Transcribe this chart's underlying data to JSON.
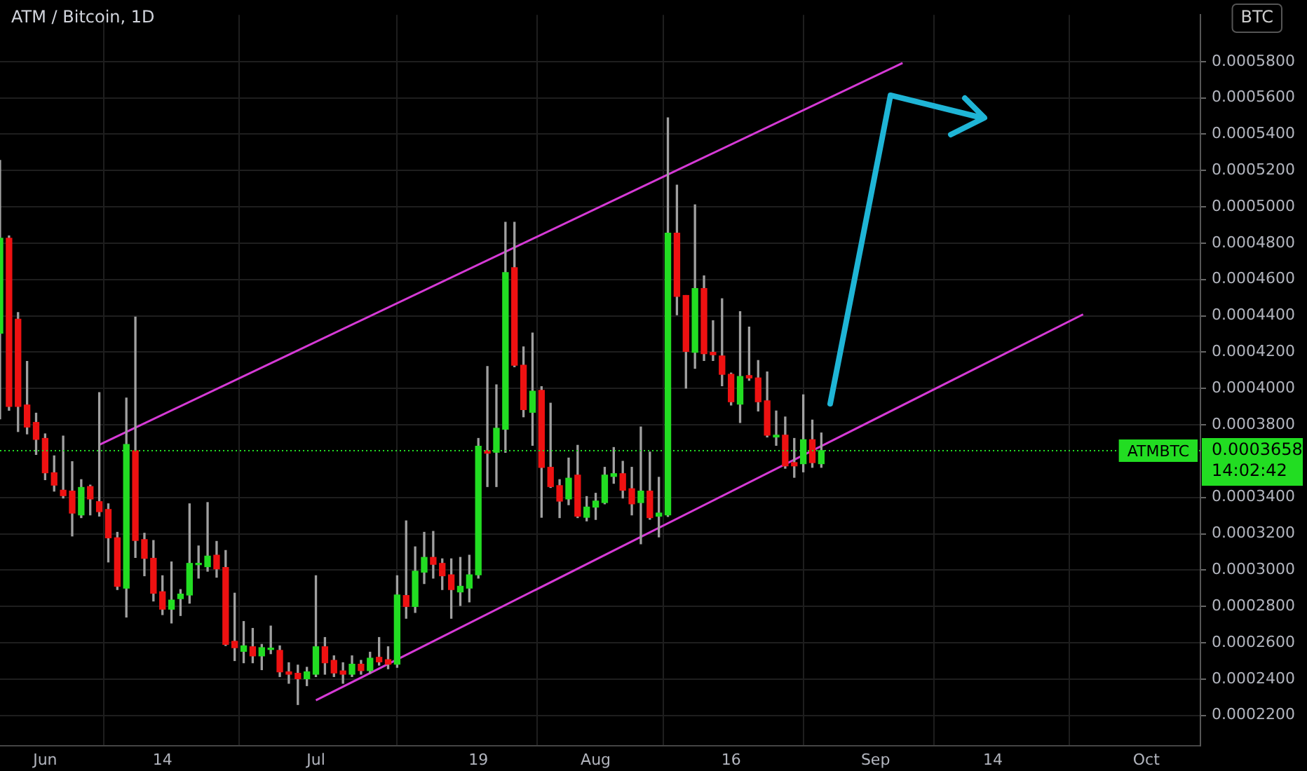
{
  "chart_data": {
    "type": "candlestick",
    "title": "ATM / Bitcoin, 1D",
    "x": [
      "--05-27",
      "--05-28",
      "--05-29",
      "--05-30",
      "--05-31",
      "--06-01",
      "--06-02",
      "--06-03",
      "--06-04",
      "--06-05",
      "--06-06",
      "--06-07",
      "--06-08",
      "--06-09",
      "--06-10",
      "--06-11",
      "--06-12",
      "--06-13",
      "--06-14",
      "--06-15",
      "--06-16",
      "--06-17",
      "--06-18",
      "--06-19",
      "--06-20",
      "--06-21",
      "--06-22",
      "--06-23",
      "--06-24",
      "--06-25",
      "--06-26",
      "--06-27",
      "--06-28",
      "--06-29",
      "--06-30",
      "--07-01",
      "--07-02",
      "--07-03",
      "--07-04",
      "--07-05",
      "--07-06",
      "--07-07",
      "--07-08",
      "--07-09",
      "--07-10",
      "--07-11",
      "--07-12",
      "--07-13",
      "--07-14",
      "--07-15",
      "--07-16",
      "--07-17",
      "--07-18",
      "--07-19",
      "--07-20",
      "--07-21",
      "--07-22",
      "--07-23",
      "--07-24",
      "--07-25",
      "--07-26",
      "--07-27",
      "--07-28",
      "--07-29",
      "--07-30",
      "--07-31",
      "--08-01",
      "--08-02",
      "--08-03",
      "--08-04",
      "--08-05",
      "--08-06",
      "--08-07",
      "--08-08",
      "--08-09",
      "--08-10",
      "--08-11",
      "--08-12",
      "--08-13",
      "--08-14",
      "--08-15",
      "--08-16",
      "--08-17",
      "--08-18",
      "--08-19",
      "--08-20",
      "--08-21",
      "--08-22",
      "--08-23",
      "--08-24",
      "--08-25",
      "--08-26"
    ],
    "ohlc": [
      [
        0.0004305,
        0.0005255,
        0.0003833,
        0.0004827
      ],
      [
        0.0004827,
        0.000484,
        0.000388,
        0.0003901
      ],
      [
        0.0004381,
        0.0004418,
        0.0003763,
        0.0003901
      ],
      [
        0.0003909,
        0.0004149,
        0.000375,
        0.0003788
      ],
      [
        0.0003813,
        0.0003864,
        0.0003637,
        0.000372
      ],
      [
        0.0003725,
        0.000375,
        0.0003498,
        0.0003536
      ],
      [
        0.0003536,
        0.0003629,
        0.0003435,
        0.0003468
      ],
      [
        0.000344,
        0.0003738,
        0.0003397,
        0.000341
      ],
      [
        0.0003435,
        0.0003597,
        0.0003188,
        0.0003314
      ],
      [
        0.0003304,
        0.0003498,
        0.0003289,
        0.0003455
      ],
      [
        0.000346,
        0.0003468,
        0.0003304,
        0.0003392
      ],
      [
        0.0003377,
        0.0003977,
        0.0003297,
        0.0003322
      ],
      [
        0.0003334,
        0.0003365,
        0.0003045,
        0.0003178
      ],
      [
        0.0003178,
        0.0003208,
        0.0002893,
        0.0002911
      ],
      [
        0.0002901,
        0.0003947,
        0.0002742,
        0.0003692
      ],
      [
        0.0003657,
        0.0004393,
        0.000307,
        0.0003163
      ],
      [
        0.0003168,
        0.0003203,
        0.0002969,
        0.0003065
      ],
      [
        0.0003065,
        0.0003163,
        0.000283,
        0.0002873
      ],
      [
        0.0002881,
        0.0002969,
        0.0002755,
        0.0002785
      ],
      [
        0.0002785,
        0.0003045,
        0.0002709,
        0.0002835
      ],
      [
        0.0002843,
        0.0002893,
        0.000275,
        0.0002868
      ],
      [
        0.0002863,
        0.0003365,
        0.0002818,
        0.0003037
      ],
      [
        0.000303,
        0.0003133,
        0.0002956,
        0.0003035
      ],
      [
        0.0003019,
        0.0003372,
        0.0002994,
        0.0003077
      ],
      [
        0.0003082,
        0.0003158,
        0.0002961,
        0.0003007
      ],
      [
        0.0003014,
        0.0003108,
        0.0002585,
        0.0002591
      ],
      [
        0.0002608,
        0.0002873,
        0.0002502,
        0.0002573
      ],
      [
        0.0002553,
        0.0002717,
        0.000249,
        0.0002583
      ],
      [
        0.0002578,
        0.0002679,
        0.000249,
        0.0002528
      ],
      [
        0.0002528,
        0.0002591,
        0.0002452,
        0.0002573
      ],
      [
        0.0002563,
        0.0002692,
        0.000254,
        0.0002567
      ],
      [
        0.0002558,
        0.0002583,
        0.0002414,
        0.000244
      ],
      [
        0.000244,
        0.000249,
        0.0002377,
        0.0002427
      ],
      [
        0.0002432,
        0.0002477,
        0.000226,
        0.0002402
      ],
      [
        0.0002402,
        0.0002465,
        0.0002364,
        0.000244
      ],
      [
        0.0002427,
        0.0002969,
        0.0002414,
        0.0002578
      ],
      [
        0.0002578,
        0.0002629,
        0.0002427,
        0.000249
      ],
      [
        0.0002503,
        0.0002528,
        0.0002414,
        0.0002434
      ],
      [
        0.0002445,
        0.000249,
        0.0002377,
        0.0002427
      ],
      [
        0.0002427,
        0.0002528,
        0.0002414,
        0.0002482
      ],
      [
        0.0002482,
        0.0002503,
        0.0002427,
        0.0002447
      ],
      [
        0.0002447,
        0.0002548,
        0.0002432,
        0.0002515
      ],
      [
        0.000252,
        0.0002629,
        0.0002477,
        0.0002495
      ],
      [
        0.0002507,
        0.0002578,
        0.0002457,
        0.0002482
      ],
      [
        0.0002482,
        0.0002969,
        0.0002465,
        0.0002863
      ],
      [
        0.000286,
        0.0003271,
        0.0002735,
        0.00028
      ],
      [
        0.00028,
        0.0003128,
        0.0002767,
        0.0002994
      ],
      [
        0.0002989,
        0.0003208,
        0.0002926,
        0.000307
      ],
      [
        0.000307,
        0.0003213,
        0.0002956,
        0.0003032
      ],
      [
        0.0003037,
        0.0003062,
        0.0002893,
        0.0002969
      ],
      [
        0.0002974,
        0.0003062,
        0.0002735,
        0.0002893
      ],
      [
        0.000288,
        0.000307,
        0.0002805,
        0.0002911
      ],
      [
        0.0002901,
        0.0003082,
        0.0002825,
        0.0002974
      ],
      [
        0.0002974,
        0.0003725,
        0.0002956,
        0.0003682
      ],
      [
        0.0003657,
        0.0004121,
        0.000346,
        0.0003644
      ],
      [
        0.0003649,
        0.000402,
        0.000346,
        0.0003781
      ],
      [
        0.0003776,
        0.0004915,
        0.0003649,
        0.0004638
      ],
      [
        0.0004665,
        0.0004915,
        0.000412,
        0.0004128
      ],
      [
        0.0004128,
        0.0004229,
        0.0003844,
        0.0003884
      ],
      [
        0.0003869,
        0.0004305,
        0.0003687,
        0.0003985
      ],
      [
        0.000399,
        0.000401,
        0.0003291,
        0.0003566
      ],
      [
        0.0003566,
        0.0003919,
        0.0003455,
        0.000346
      ],
      [
        0.0003465,
        0.0003498,
        0.0003289,
        0.000338
      ],
      [
        0.0003392,
        0.0003617,
        0.000336,
        0.0003506
      ],
      [
        0.0003523,
        0.0003687,
        0.0003289,
        0.0003297
      ],
      [
        0.0003291,
        0.0003405,
        0.0003271,
        0.0003347
      ],
      [
        0.0003347,
        0.0003423,
        0.0003279,
        0.000338
      ],
      [
        0.0003372,
        0.0003566,
        0.0003365,
        0.0003523
      ],
      [
        0.0003516,
        0.0003675,
        0.0003478,
        0.0003531
      ],
      [
        0.0003531,
        0.0003599,
        0.0003397,
        0.000344
      ],
      [
        0.0003448,
        0.0003566,
        0.0003304,
        0.0003365
      ],
      [
        0.0003372,
        0.0003788,
        0.0003145,
        0.0003435
      ],
      [
        0.0003435,
        0.000365,
        0.000328,
        0.0003289
      ],
      [
        0.0003297,
        0.0003511,
        0.0003183,
        0.0003314
      ],
      [
        0.0003304,
        0.000549,
        0.0003295,
        0.0004855
      ],
      [
        0.0004855,
        0.0005119,
        0.0004406,
        0.0004507
      ],
      [
        0.0004512,
        0.0004512,
        0.0004002,
        0.0004204
      ],
      [
        0.0004199,
        0.0005011,
        0.0004111,
        0.000455
      ],
      [
        0.000455,
        0.000462,
        0.0004154,
        0.0004192
      ],
      [
        0.0004199,
        0.0004373,
        0.0004154,
        0.0004186
      ],
      [
        0.0004179,
        0.0004494,
        0.0004015,
        0.0004078
      ],
      [
        0.0004078,
        0.0004085,
        0.0003909,
        0.0003927
      ],
      [
        0.0003914,
        0.0004423,
        0.0003813,
        0.0004066
      ],
      [
        0.0004071,
        0.0004338,
        0.0004045,
        0.0004058
      ],
      [
        0.0004058,
        0.0004154,
        0.0003876,
        0.0003927
      ],
      [
        0.0003932,
        0.0004091,
        0.0003733,
        0.0003743
      ],
      [
        0.0003733,
        0.0003876,
        0.0003687,
        0.0003743
      ],
      [
        0.0003743,
        0.0003843,
        0.0003561,
        0.0003574
      ],
      [
        0.0003592,
        0.0003725,
        0.0003511,
        0.0003574
      ],
      [
        0.0003586,
        0.0003965,
        0.0003541,
        0.0003718
      ],
      [
        0.0003718,
        0.0003826,
        0.0003566,
        0.0003592
      ],
      [
        0.0003586,
        0.0003755,
        0.0003566,
        0.0003658
      ]
    ],
    "series": [
      {
        "type": "line",
        "color": "#d63ad6",
        "x": [
          "--06-07",
          "--09-04"
        ],
        "values": [
          0.000369,
          0.0005792
        ]
      },
      {
        "type": "line",
        "color": "#d63ad6",
        "x": [
          "--07-01",
          "--09-24"
        ],
        "values": [
          0.0002283,
          0.0004408
        ]
      }
    ],
    "xlim": [
      "--05-27",
      "--10-07"
    ],
    "xticks": [
      {
        "value": "--06-01",
        "label": "Jun"
      },
      {
        "value": "--06-14",
        "label": "14"
      },
      {
        "value": "--07-01",
        "label": "Jul"
      },
      {
        "value": "--07-19",
        "label": "19"
      },
      {
        "value": "--08-01",
        "label": "Aug"
      },
      {
        "value": "--08-16",
        "label": "16"
      },
      {
        "value": "--09-01",
        "label": "Sep"
      },
      {
        "value": "--09-14",
        "label": "14"
      },
      {
        "value": "--10-01",
        "label": "Oct"
      }
    ],
    "ylim": [
      0.0002033,
      0.0006057
    ],
    "yticks": [
      {
        "value": 0.00022,
        "label": "0.0002200"
      },
      {
        "value": 0.00024,
        "label": "0.0002400"
      },
      {
        "value": 0.00026,
        "label": "0.0002600"
      },
      {
        "value": 0.00028,
        "label": "0.0002800"
      },
      {
        "value": 0.0003,
        "label": "0.0003000"
      },
      {
        "value": 0.00032,
        "label": "0.0003200"
      },
      {
        "value": 0.00034,
        "label": "0.0003400"
      },
      {
        "value": 0.00038,
        "label": "0.0003800"
      },
      {
        "value": 0.0004,
        "label": "0.0004000"
      },
      {
        "value": 0.00042,
        "label": "0.0004200"
      },
      {
        "value": 0.00044,
        "label": "0.0004400"
      },
      {
        "value": 0.00046,
        "label": "0.0004600"
      },
      {
        "value": 0.00048,
        "label": "0.0004800"
      },
      {
        "value": 0.0005,
        "label": "0.0005000"
      },
      {
        "value": 0.00052,
        "label": "0.0005200"
      },
      {
        "value": 0.00054,
        "label": "0.0005400"
      },
      {
        "value": 0.00056,
        "label": "0.0005600"
      },
      {
        "value": 0.00058,
        "label": "0.0005800"
      }
    ],
    "ref_lines": [
      {
        "axis": "y",
        "value": 0.0003658,
        "label": "ATMBTC",
        "color": "#22dd22",
        "line_style": "dotted"
      }
    ],
    "annotations": [
      "BTC",
      "0.0003658",
      "14:02:42"
    ],
    "grid": true,
    "legend": false
  }
}
